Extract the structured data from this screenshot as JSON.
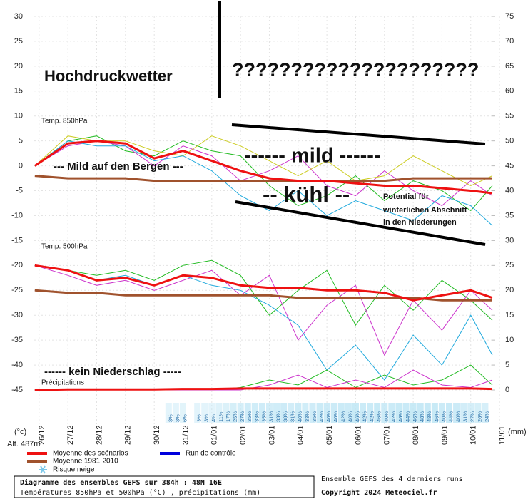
{
  "chart_data": {
    "type": "line",
    "x": [
      -0.15,
      1,
      2,
      3,
      4,
      5,
      6,
      7,
      8,
      9,
      10,
      11,
      12,
      13,
      14,
      15,
      15.75
    ],
    "xlim": [
      -0.17,
      15.75
    ],
    "xticks": [
      {
        "value": 0,
        "label": "26/12"
      },
      {
        "value": 1,
        "label": "27/12"
      },
      {
        "value": 2,
        "label": "28/12"
      },
      {
        "value": 3,
        "label": "29/12"
      },
      {
        "value": 4,
        "label": "30/12"
      },
      {
        "value": 5,
        "label": "31/12"
      },
      {
        "value": 6,
        "label": "01/01"
      },
      {
        "value": 7,
        "label": "02/01"
      },
      {
        "value": 8,
        "label": "03/01"
      },
      {
        "value": 9,
        "label": "04/01"
      },
      {
        "value": 10,
        "label": "05/01"
      },
      {
        "value": 11,
        "label": "06/01"
      },
      {
        "value": 12,
        "label": "07/01"
      },
      {
        "value": 13,
        "label": "08/01"
      },
      {
        "value": 14,
        "label": "09/01"
      },
      {
        "value": 15,
        "label": "10/01"
      },
      {
        "value": 16,
        "label": "11/01"
      }
    ],
    "ylim": [
      -45,
      30
    ],
    "yticks": [
      -45,
      -40,
      -35,
      -30,
      -25,
      -20,
      -15,
      -10,
      -5,
      0,
      5,
      10,
      15,
      20,
      25,
      30
    ],
    "y2lim": [
      0,
      75
    ],
    "y2ticks": [
      0,
      5,
      10,
      15,
      20,
      25,
      30,
      35,
      40,
      45,
      50,
      55,
      60,
      65,
      70,
      75
    ],
    "grid": true,
    "ylabel": "(°c)",
    "y2label": "(mm)",
    "series": [
      {
        "color": "#22bb22",
        "values": [
          0,
          5,
          6,
          3,
          2,
          5,
          3,
          2,
          -4,
          -8,
          -6,
          -2,
          -7,
          -3,
          -5,
          -9,
          -4
        ]
      },
      {
        "color": "#cc33cc",
        "values": [
          0,
          4,
          5,
          4,
          0,
          4,
          2,
          -3,
          -1,
          2,
          -4,
          -6,
          -1,
          -5,
          -8,
          -3,
          -6
        ]
      },
      {
        "color": "#cccc22",
        "values": [
          0,
          6,
          5,
          5,
          3,
          2,
          6,
          4,
          1,
          -2,
          1,
          -3,
          -2,
          2,
          -1,
          -4,
          -2
        ]
      },
      {
        "color": "#22aadd",
        "values": [
          0,
          5,
          4,
          4,
          1,
          2,
          -1,
          -6,
          -9,
          -5,
          -10,
          -7,
          -9,
          -11,
          -6,
          -8,
          -12
        ]
      },
      {
        "color": "#22bb22",
        "values": [
          -20,
          -21,
          -22,
          -21,
          -23,
          -20,
          -19,
          -22,
          -30,
          -25,
          -21,
          -32,
          -24,
          -29,
          -23,
          -27,
          -31
        ]
      },
      {
        "color": "#cc33cc",
        "values": [
          -20,
          -22,
          -24,
          -23,
          -25,
          -23,
          -21,
          -26,
          -22,
          -35,
          -28,
          -24,
          -38,
          -27,
          -33,
          -25,
          -29
        ]
      },
      {
        "color": "#22aadd",
        "values": [
          -20,
          -21,
          -23,
          -22,
          -24,
          -22,
          -24,
          -25,
          -28,
          -32,
          -41,
          -36,
          -43,
          -34,
          -40,
          -30,
          -38
        ]
      },
      {
        "color": "#22bb22",
        "axis": "y2",
        "values": [
          0,
          0,
          0,
          0,
          0,
          0,
          0,
          0.5,
          2,
          1,
          4,
          0.5,
          3,
          1,
          2,
          5,
          1
        ]
      },
      {
        "color": "#cc33cc",
        "axis": "y2",
        "values": [
          0,
          0,
          0,
          0,
          0,
          0,
          0,
          0,
          1,
          3,
          0.5,
          2,
          0.5,
          4,
          1,
          0.5,
          2
        ]
      },
      {
        "color": "#a0522d",
        "values": [
          -2,
          -2.5,
          -2.5,
          -2.5,
          -3,
          -3,
          -3,
          -3,
          -3,
          -3,
          -3,
          -3,
          -3,
          -2.5,
          -2.5,
          -2.5,
          -2.5
        ]
      },
      {
        "color": "#a0522d",
        "values": [
          -25,
          -25.5,
          -25.5,
          -26,
          -26,
          -26,
          -26,
          -26,
          -26,
          -26.5,
          -26.5,
          -26.5,
          -26.5,
          -26.5,
          -27,
          -27,
          -27
        ]
      },
      {
        "color": "#ee1111",
        "values": [
          0,
          4.5,
          5,
          4.5,
          1.5,
          3,
          1,
          -1,
          -2.5,
          -3,
          -3,
          -3.5,
          -4,
          -4,
          -4.5,
          -5,
          -5.5
        ]
      },
      {
        "color": "#ee1111",
        "values": [
          -20,
          -21,
          -23,
          -22.5,
          -24,
          -22,
          -22.5,
          -24,
          -24.5,
          -24.5,
          -25,
          -25,
          -25.5,
          -27,
          -26,
          -25,
          -26.5
        ]
      },
      {
        "color": "#ee1111",
        "axis": "y2",
        "values": [
          0,
          0.1,
          0.1,
          0.1,
          0.1,
          0.2,
          0.2,
          0.3,
          0.3,
          0.3,
          0.3,
          0.3,
          0.3,
          0.3,
          0.3,
          0.3,
          0.2
        ]
      }
    ],
    "snow_risk": {
      "x": [
        4.5,
        4.75,
        5,
        5.5,
        5.75,
        6,
        6.25,
        6.5,
        6.75,
        7,
        7.25,
        7.5,
        7.75,
        8,
        8.25,
        8.5,
        8.75,
        9,
        9.25,
        9.5,
        9.75,
        10,
        10.25,
        10.5,
        10.75,
        11,
        11.25,
        11.5,
        11.75,
        12,
        12.25,
        12.5,
        12.75,
        13,
        13.25,
        13.5,
        13.75,
        14,
        14.25,
        14.5,
        14.75,
        15,
        15.25,
        15.5
      ],
      "values": [
        3,
        3,
        6,
        3,
        3,
        4,
        11,
        17,
        25,
        27,
        35,
        33,
        35,
        31,
        33,
        38,
        31,
        40,
        33,
        35,
        42,
        40,
        40,
        42,
        40,
        46,
        42,
        42,
        46,
        40,
        42,
        46,
        44,
        46,
        48,
        48,
        46,
        40,
        44,
        40,
        31,
        27,
        26,
        24
      ],
      "value_labels": [
        "3%",
        "3%",
        "6%",
        "3%",
        "3%",
        "4%",
        "11%",
        "17%",
        "25%",
        "27%",
        "35%",
        "33%",
        "35%",
        "31%",
        "33%",
        "38%",
        "31%",
        "40%",
        "33%",
        "35%",
        "42%",
        "40%",
        "40%",
        "42%",
        "40%",
        "46%",
        "42%",
        "42%",
        "46%",
        "40%",
        "42%",
        "46%",
        "44%",
        "46%",
        "48%",
        "48%",
        "46%",
        "40%",
        "44%",
        "40%",
        "31%",
        "27%",
        "26%",
        "24%"
      ]
    },
    "panel_labels": [
      "Temp. 850hPa",
      "Temp. 500hPa",
      "Précipitations"
    ],
    "altitude": "Alt. 487m",
    "legend": [
      {
        "name": "Moyenne des scénarios",
        "color": "#ee1111"
      },
      {
        "name": "Moyenne 1981-2010",
        "color": "#a0522d"
      },
      {
        "name": "Run de contrôle",
        "color": "#0000dd"
      },
      {
        "name": "Risque neige",
        "color": "#7cc8ea"
      }
    ],
    "annotations": [
      "Hochdruckwetter",
      "?????????????????????",
      "------ mild ------",
      "-- kühl --",
      "--- Mild auf den Bergen ---",
      "------ kein Niederschlag -----",
      "Potential für",
      "winterlichen Abschnitt",
      "in den Niederungen"
    ],
    "footer": {
      "title": "Diagramme des ensembles GEFS sur 384h : 48N 16E",
      "subtitle": "Températures 850hPa et 500hPa (°C) , précipitations (mm)",
      "runs": "Ensemble GEFS des 4 derniers runs",
      "copyright": "Copyright 2024 Meteociel.fr"
    }
  }
}
